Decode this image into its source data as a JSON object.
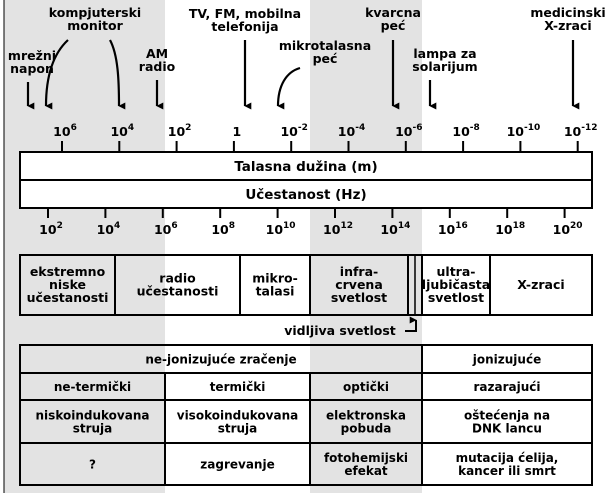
{
  "annotations": [
    {
      "lines": [
        "mrežni",
        "napon"
      ]
    },
    {
      "lines": [
        "kompjuterski",
        "monitor"
      ]
    },
    {
      "lines": [
        "AM",
        "radio"
      ]
    },
    {
      "lines": [
        "TV, FM, mobilna",
        "telefonija"
      ]
    },
    {
      "lines": [
        "mikrotalasna",
        "peć"
      ]
    },
    {
      "lines": [
        "kvarcna",
        "peć"
      ]
    },
    {
      "lines": [
        "lampa za",
        "solarijum"
      ]
    },
    {
      "lines": [
        "medicinski",
        "X-zraci"
      ]
    }
  ],
  "wavelength_ticks": [
    {
      "base": "10",
      "exp": "6"
    },
    {
      "base": "10",
      "exp": "4"
    },
    {
      "base": "10",
      "exp": "2"
    },
    {
      "base": "1"
    },
    {
      "base": "10",
      "exp": "-2"
    },
    {
      "base": "10",
      "exp": "-4"
    },
    {
      "base": "10",
      "exp": "-6"
    },
    {
      "base": "10",
      "exp": "-8"
    },
    {
      "base": "10",
      "exp": "-10"
    },
    {
      "base": "10",
      "exp": "-12"
    }
  ],
  "wavelength_label": "Talasna dužina (m)",
  "frequency_label": "Učestanost (Hz)",
  "frequency_ticks": [
    {
      "base": "10",
      "exp": "2"
    },
    {
      "base": "10",
      "exp": "4"
    },
    {
      "base": "10",
      "exp": "6"
    },
    {
      "base": "10",
      "exp": "8"
    },
    {
      "base": "10",
      "exp": "10"
    },
    {
      "base": "10",
      "exp": "12"
    },
    {
      "base": "10",
      "exp": "14"
    },
    {
      "base": "10",
      "exp": "16"
    },
    {
      "base": "10",
      "exp": "18"
    },
    {
      "base": "10",
      "exp": "20"
    }
  ],
  "bands": [
    {
      "lines": [
        "ekstremno",
        "niske",
        "učestanosti"
      ]
    },
    {
      "lines": [
        "radio",
        "učestanosti"
      ]
    },
    {
      "lines": [
        "mikro-",
        "talasi"
      ]
    },
    {
      "lines": [
        "infra-",
        "crvena",
        "svetlost"
      ]
    },
    {
      "lines": [
        "ultra-",
        "ljubičasta",
        "svetlost"
      ]
    },
    {
      "lines": [
        "X-zraci"
      ]
    }
  ],
  "visible_label": "vidljiva svetlost",
  "table": {
    "rows": [
      [
        [
          "ne-jonizujuće zračenje"
        ],
        [
          "jonizujuće"
        ]
      ],
      [
        [
          "ne-termički"
        ],
        [
          "termički"
        ],
        [
          "optički"
        ],
        [
          "razarajući"
        ]
      ],
      [
        [
          "niskoindukovana",
          "struja"
        ],
        [
          "visokoindukovana",
          "struja"
        ],
        [
          "elektronska",
          "pobuda"
        ],
        [
          "oštećenja na",
          "DNK lancu"
        ]
      ],
      [
        [
          "?"
        ],
        [
          "zagrevanje"
        ],
        [
          "fotohemijski",
          "efekat"
        ],
        [
          "mutacija ćelija,",
          "kancer ili smrt"
        ]
      ]
    ]
  }
}
